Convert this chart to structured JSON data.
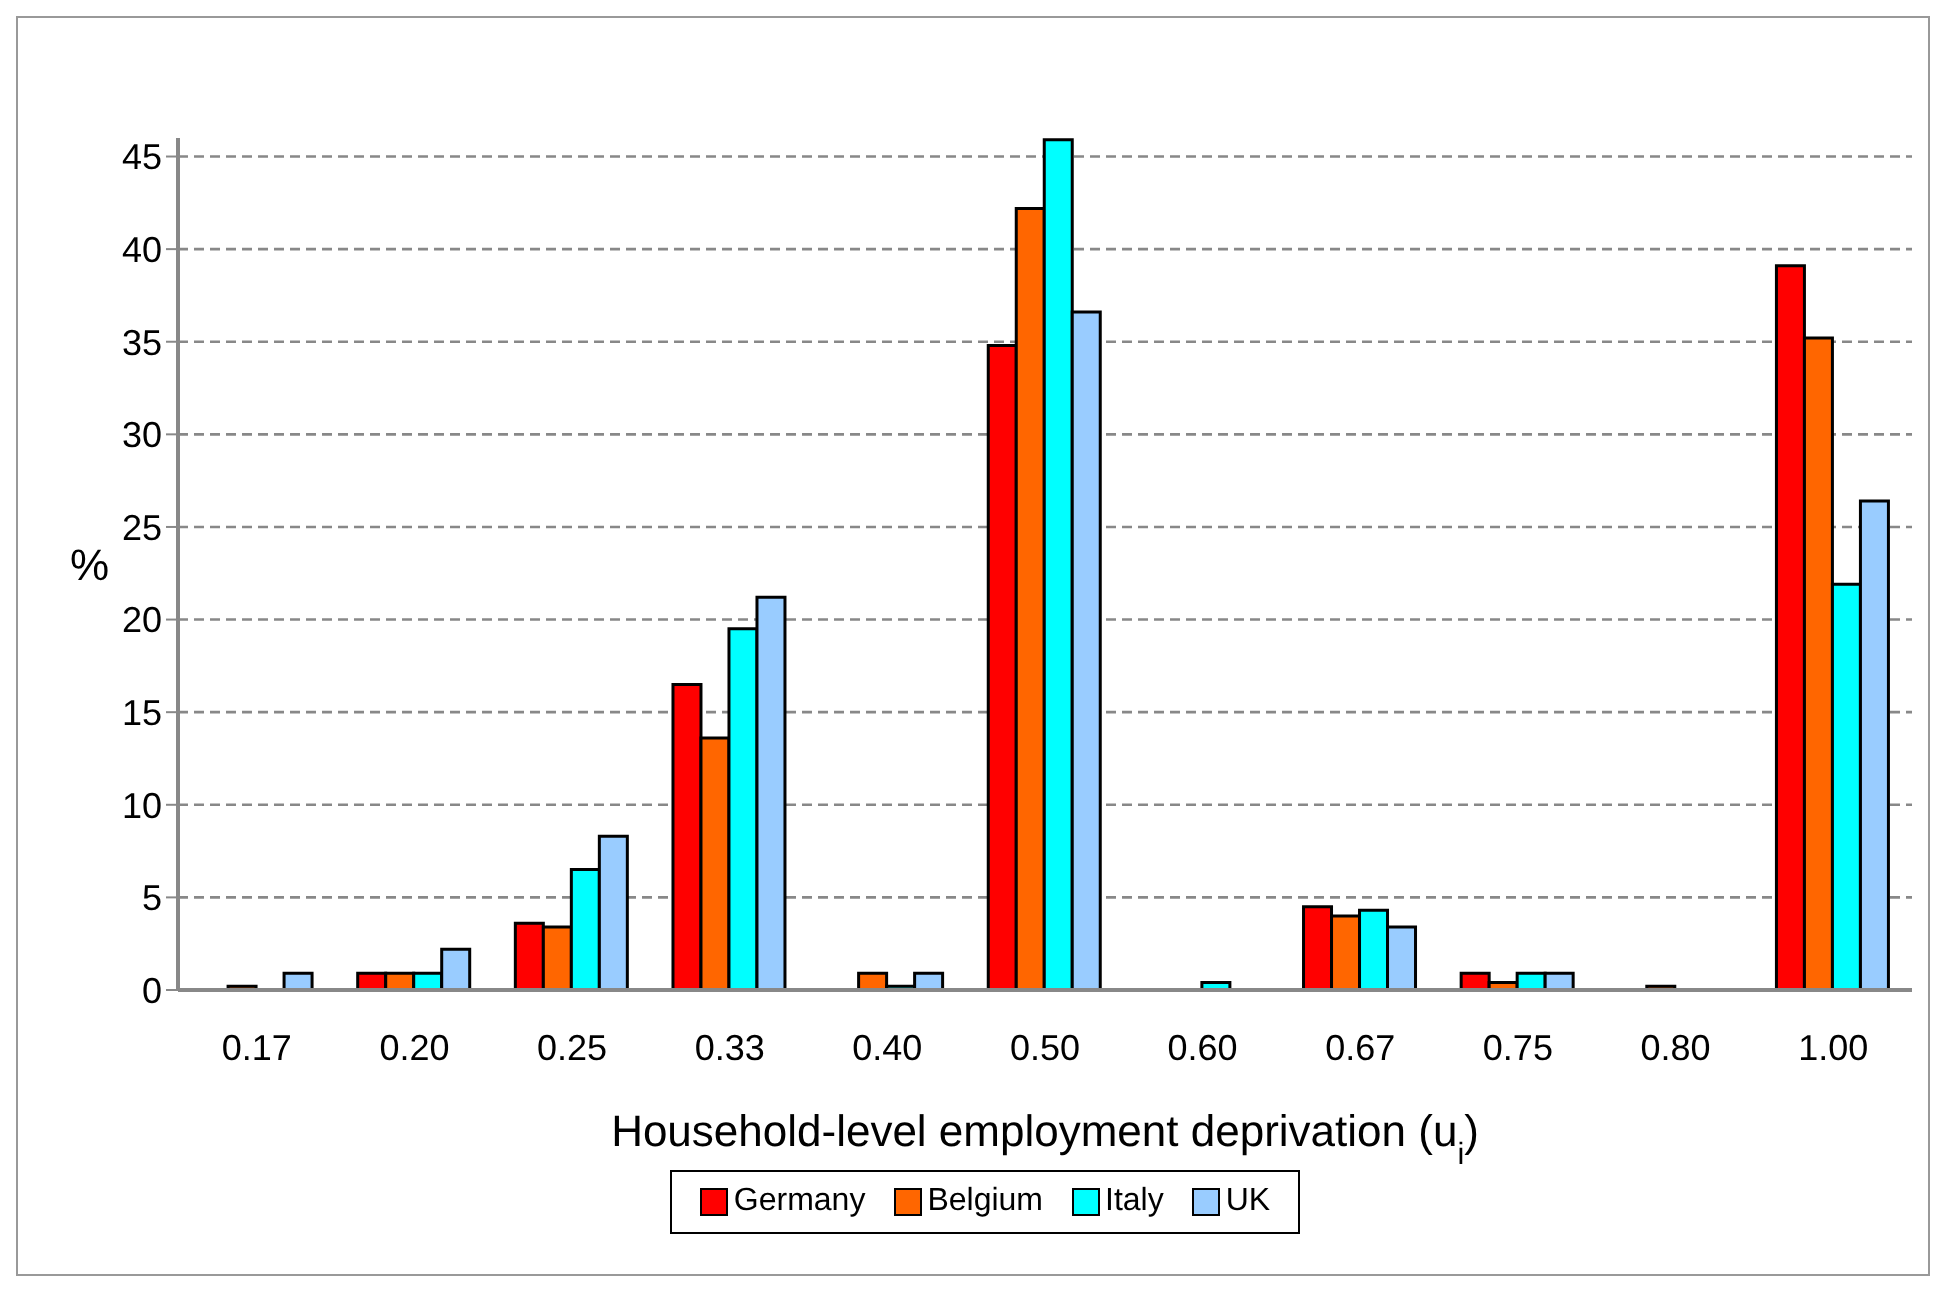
{
  "chart_data": {
    "type": "bar",
    "xlabel": "Household-level employment deprivation (u$_{i}$)",
    "ylabel": "%",
    "categories": [
      "0.17",
      "0.20",
      "0.25",
      "0.33",
      "0.40",
      "0.50",
      "0.60",
      "0.67",
      "0.75",
      "0.80",
      "1.00"
    ],
    "series": [
      {
        "name": "Germany",
        "color": "#ff0000",
        "values": [
          0,
          0.9,
          3.6,
          16.5,
          0,
          34.8,
          0,
          4.5,
          0.9,
          0,
          39.1
        ]
      },
      {
        "name": "Belgium",
        "color": "#ff6600",
        "values": [
          0.2,
          0.9,
          3.4,
          13.6,
          0.9,
          42.2,
          0,
          4.0,
          0.4,
          0.2,
          35.2
        ]
      },
      {
        "name": "Italy",
        "color": "#00ffff",
        "values": [
          0,
          0.9,
          6.5,
          19.5,
          0.2,
          45.9,
          0.4,
          4.3,
          0.9,
          0,
          21.9
        ]
      },
      {
        "name": "UK",
        "color": "#99ccff",
        "values": [
          0.9,
          2.2,
          8.3,
          21.2,
          0.9,
          36.6,
          0,
          3.4,
          0.9,
          0,
          26.4
        ]
      }
    ],
    "ylim": [
      0,
      46
    ],
    "yticks": [
      0,
      5,
      10,
      15,
      20,
      25,
      30,
      35,
      40,
      45
    ],
    "grid": "y",
    "legend": "bottom"
  }
}
